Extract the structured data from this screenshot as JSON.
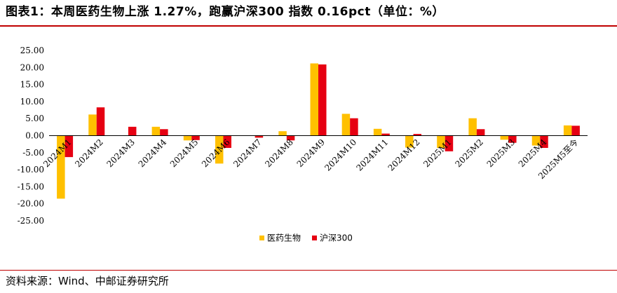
{
  "header": {
    "title": "图表1：本周医药生物上涨 1.27%，跑赢沪深300 指数 0.16pct（单位：%）"
  },
  "footer": {
    "source": "资料来源：Wind、中邮证券研究所"
  },
  "colors": {
    "rule": "#c00000",
    "series_1": "#ffc000",
    "series_2": "#e60012"
  },
  "chart_data": {
    "type": "bar",
    "title": "",
    "xlabel": "",
    "ylabel": "",
    "ylim": [
      -25,
      25
    ],
    "yticks": [
      "25.00",
      "20.00",
      "15.00",
      "10.00",
      "5.00",
      "0.00",
      "-5.00",
      "-10.00",
      "-15.00",
      "-20.00",
      "-25.00"
    ],
    "grid": false,
    "legend_position": "bottom",
    "categories": [
      "2024M1",
      "2024M2",
      "2024M3",
      "2024M4",
      "2024M5",
      "2024M6",
      "2024M7",
      "2024M8",
      "2024M9",
      "2024M10",
      "2024M11",
      "2024M12",
      "2025M1",
      "2025M2",
      "2025M3",
      "2025M4",
      "2025M5至今"
    ],
    "series": [
      {
        "name": "医药生物",
        "color": "#ffc000",
        "values": [
          -18.5,
          6.2,
          0.0,
          2.6,
          -1.4,
          -8.2,
          0.0,
          1.3,
          21.2,
          6.4,
          2.0,
          -3.5,
          -3.6,
          5.1,
          -1.2,
          -2.9,
          3.0
        ]
      },
      {
        "name": "沪深300",
        "color": "#e60012",
        "values": [
          -6.3,
          8.3,
          2.6,
          1.9,
          -1.3,
          -3.6,
          -0.6,
          -1.4,
          20.9,
          5.1,
          0.6,
          0.5,
          -4.6,
          1.9,
          -2.1,
          -3.6,
          2.9
        ]
      }
    ]
  }
}
